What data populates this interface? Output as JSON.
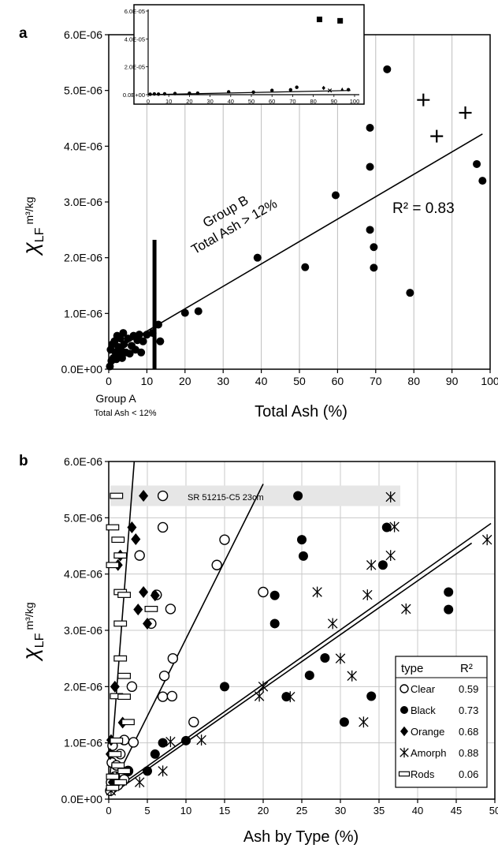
{
  "chart_data": [
    {
      "panel": "a",
      "type": "scatter",
      "panel_label": "a",
      "ylabel_main": "χ",
      "ylabel_sub": "LF",
      "ylabel_unit": "m³/kg",
      "xlabel": "Total Ash (%)",
      "xlim": [
        0,
        100
      ],
      "ylim": [
        0,
        6e-06
      ],
      "x_ticks": [
        "0",
        "10",
        "20",
        "30",
        "40",
        "50",
        "60",
        "70",
        "80",
        "90",
        "100"
      ],
      "y_ticks": [
        "0.0E+00",
        "1.0E-06",
        "2.0E-06",
        "3.0E-06",
        "4.0E-06",
        "5.0E-06",
        "6.0E-06"
      ],
      "grid": "vertical",
      "r2_label": "R² = 0.83",
      "group_b_line1": "Group B",
      "group_b_line2": "Total Ash > 12%",
      "group_a_line1": "Group A",
      "group_a_line2": "Total Ash < 12%",
      "divider_x": 12,
      "divider_top": 2.32e-06,
      "fit": {
        "x0": 0,
        "y0": 2.8e-07,
        "x1": 98,
        "y1": 4.22e-06
      },
      "series": [
        {
          "marker": "circle",
          "points": [
            [
              0.3,
              5e-08
            ],
            [
              0.5,
              3.5e-07
            ],
            [
              0.7,
              1.5e-07
            ],
            [
              1,
              4.5e-07
            ],
            [
              1.2,
              2e-07
            ],
            [
              1.5,
              5e-07
            ],
            [
              1.8,
              3e-07
            ],
            [
              2,
              1.8e-07
            ],
            [
              2.2,
              6e-07
            ],
            [
              2.5,
              4e-07
            ],
            [
              2.8,
              2.5e-07
            ],
            [
              3,
              5.5e-07
            ],
            [
              3.2,
              3.5e-07
            ],
            [
              3.5,
              2e-07
            ],
            [
              3.8,
              6.5e-07
            ],
            [
              4,
              4.5e-07
            ],
            [
              4.5,
              3e-07
            ],
            [
              5,
              5.5e-07
            ],
            [
              5.5,
              2.8e-07
            ],
            [
              6,
              4.2e-07
            ],
            [
              6.5,
              6e-07
            ],
            [
              7,
              3.5e-07
            ],
            [
              7.5,
              5.2e-07
            ],
            [
              8,
              6.2e-07
            ],
            [
              8.5,
              3e-07
            ],
            [
              9,
              5e-07
            ],
            [
              10,
              6.2e-07
            ],
            [
              11.5,
              6.5e-07
            ],
            [
              13,
              8e-07
            ],
            [
              13.5,
              5e-07
            ],
            [
              20,
              1.01e-06
            ],
            [
              23.5,
              1.04e-06
            ],
            [
              39,
              2e-06
            ],
            [
              51.5,
              1.83e-06
            ],
            [
              59.5,
              3.12e-06
            ],
            [
              68.5,
              4.33e-06
            ],
            [
              68.5,
              3.63e-06
            ],
            [
              68.5,
              2.5e-06
            ],
            [
              69.5,
              2.19e-06
            ],
            [
              69.5,
              1.82e-06
            ],
            [
              73,
              5.38e-06
            ],
            [
              79,
              1.37e-06
            ],
            [
              96.5,
              3.68e-06
            ],
            [
              98,
              3.38e-06
            ]
          ]
        },
        {
          "marker": "plus",
          "points": [
            [
              82.5,
              4.83e-06
            ],
            [
              86,
              4.18e-06
            ],
            [
              93.5,
              4.6e-06
            ]
          ]
        }
      ],
      "inset": {
        "type": "scatter",
        "xlim": [
          0,
          100
        ],
        "ylim": [
          0,
          6e-05
        ],
        "x_ticks": [
          "0",
          "10",
          "20",
          "30",
          "40",
          "50",
          "60",
          "70",
          "80",
          "90",
          "100"
        ],
        "y_ticks": [
          "0.0E+00",
          "2.0E-05",
          "4.0E-05",
          "6.0E-05"
        ],
        "fit": {
          "x0": 0,
          "y0": 0,
          "x1": 98,
          "y1": 3e-06
        },
        "series": [
          {
            "marker": "circle",
            "points": [
              [
                1,
                3e-07
              ],
              [
                3,
                5e-07
              ],
              [
                5,
                4e-07
              ],
              [
                8,
                6e-07
              ],
              [
                13,
                8e-07
              ],
              [
                20,
                1e-06
              ],
              [
                24,
                1.1e-06
              ],
              [
                39,
                2e-06
              ],
              [
                51,
                1.8e-06
              ],
              [
                60,
                3.1e-06
              ],
              [
                69,
                3.5e-06
              ],
              [
                72,
                5.3e-06
              ],
              [
                97,
                3.6e-06
              ]
            ]
          },
          {
            "marker": "square",
            "points": [
              [
                83,
                5.4e-05
              ],
              [
                93,
                5.3e-05
              ]
            ]
          },
          {
            "marker": "diamond",
            "points": [
              [
                85,
                4.8e-06
              ]
            ]
          },
          {
            "marker": "triangle",
            "points": [
              [
                94,
                4e-06
              ]
            ]
          },
          {
            "marker": "x",
            "points": [
              [
                88,
                3e-06
              ]
            ]
          }
        ]
      }
    },
    {
      "panel": "b",
      "type": "scatter",
      "panel_label": "b",
      "ylabel_main": "χ",
      "ylabel_sub": "LF",
      "ylabel_unit": "m³/kg",
      "xlabel": "Ash by Type (%)",
      "xlim": [
        0,
        50
      ],
      "ylim": [
        0,
        6e-06
      ],
      "x_ticks": [
        "0",
        "5",
        "10",
        "15",
        "20",
        "25",
        "30",
        "35",
        "40",
        "45",
        "50"
      ],
      "y_ticks": [
        "0.0E+00",
        "1.0E-06",
        "2.0E-06",
        "3.0E-06",
        "4.0E-06",
        "5.0E-06",
        "6.0E-06"
      ],
      "grid": "both",
      "highlight_label": "SR 51215-C5 23cm",
      "highlight_y": 5.39e-06,
      "legend": {
        "header_type": "type",
        "header_r2": "R²",
        "entries": [
          {
            "label": "Clear",
            "r2": "0.59",
            "marker": "open-circle"
          },
          {
            "label": "Black",
            "r2": "0.73",
            "marker": "circle"
          },
          {
            "label": "Orange",
            "r2": "0.68",
            "marker": "diamond"
          },
          {
            "label": "Amorph",
            "r2": "0.88",
            "marker": "asterisk"
          },
          {
            "label": "Rods",
            "r2": "0.06",
            "marker": "rect"
          }
        ]
      },
      "fits": [
        {
          "x0": 0,
          "y0": 1e-07,
          "x1": 3.3,
          "y1": 6e-06
        },
        {
          "x0": 0,
          "y0": 1e-07,
          "x1": 20,
          "y1": 5.6e-06
        },
        {
          "x0": 0,
          "y0": 1e-07,
          "x1": 49.5,
          "y1": 4.9e-06
        },
        {
          "x0": 0.5,
          "y0": 1e-07,
          "x1": 47,
          "y1": 4.55e-06
        }
      ],
      "series": [
        {
          "name": "Clear",
          "marker": "open-circle",
          "points": [
            [
              0.2,
              1.5e-07
            ],
            [
              0.3,
              3e-07
            ],
            [
              0.4,
              6.5e-07
            ],
            [
              0.5,
              9.5e-07
            ],
            [
              0.8,
              4e-07
            ],
            [
              1,
              6e-07
            ],
            [
              1.2,
              2.5e-07
            ],
            [
              1.5,
              8e-07
            ],
            [
              2,
              1.05e-06
            ],
            [
              2,
              3.5e-07
            ],
            [
              2.5,
              5e-07
            ],
            [
              3,
              2e-06
            ],
            [
              3.2,
              1.01e-06
            ],
            [
              4,
              4.33e-06
            ],
            [
              5.5,
              3.12e-06
            ],
            [
              6.2,
              3.63e-06
            ],
            [
              7,
              5.39e-06
            ],
            [
              7,
              4.83e-06
            ],
            [
              7,
              1.82e-06
            ],
            [
              7.2,
              2.19e-06
            ],
            [
              8,
              3.38e-06
            ],
            [
              8.2,
              1.83e-06
            ],
            [
              8.3,
              2.5e-06
            ],
            [
              11,
              1.37e-06
            ],
            [
              14,
              4.16e-06
            ],
            [
              15,
              4.61e-06
            ],
            [
              20,
              3.68e-06
            ]
          ]
        },
        {
          "name": "Black",
          "marker": "circle",
          "points": [
            [
              1,
              3e-07
            ],
            [
              2.5,
              5e-07
            ],
            [
              5,
              5e-07
            ],
            [
              6,
              8e-07
            ],
            [
              7,
              1e-06
            ],
            [
              10,
              1.04e-06
            ],
            [
              15,
              2e-06
            ],
            [
              21.5,
              3.62e-06
            ],
            [
              21.5,
              3.12e-06
            ],
            [
              23,
              1.82e-06
            ],
            [
              24.5,
              5.39e-06
            ],
            [
              25,
              4.61e-06
            ],
            [
              25.2,
              4.32e-06
            ],
            [
              26,
              2.2e-06
            ],
            [
              28,
              2.51e-06
            ],
            [
              30.5,
              1.37e-06
            ],
            [
              34,
              1.83e-06
            ],
            [
              35.5,
              4.16e-06
            ],
            [
              36,
              4.83e-06
            ],
            [
              44,
              3.68e-06
            ],
            [
              44,
              3.37e-06
            ]
          ]
        },
        {
          "name": "Orange",
          "marker": "diamond",
          "points": [
            [
              0.2,
              8e-07
            ],
            [
              0.3,
              1.05e-06
            ],
            [
              0.5,
              3e-07
            ],
            [
              0.8,
              2e-06
            ],
            [
              1.2,
              4.16e-06
            ],
            [
              1.5,
              4.33e-06
            ],
            [
              1.8,
              1.36e-06
            ],
            [
              3,
              4.83e-06
            ],
            [
              3.5,
              4.62e-06
            ],
            [
              3.8,
              3.37e-06
            ],
            [
              4.5,
              3.68e-06
            ],
            [
              4.5,
              5.39e-06
            ],
            [
              5,
              3.12e-06
            ],
            [
              6,
              3.62e-06
            ]
          ]
        },
        {
          "name": "Amorph",
          "marker": "asterisk",
          "points": [
            [
              0.3,
              1.5e-07
            ],
            [
              1,
              4e-07
            ],
            [
              4,
              3e-07
            ],
            [
              7,
              5e-07
            ],
            [
              8,
              1.02e-06
            ],
            [
              12,
              1.05e-06
            ],
            [
              19.5,
              1.83e-06
            ],
            [
              20,
              2e-06
            ],
            [
              23.5,
              1.82e-06
            ],
            [
              27,
              3.68e-06
            ],
            [
              29,
              3.12e-06
            ],
            [
              30,
              2.5e-06
            ],
            [
              31.5,
              2.19e-06
            ],
            [
              33,
              1.37e-06
            ],
            [
              33.5,
              3.63e-06
            ],
            [
              34,
              4.16e-06
            ],
            [
              36.5,
              5.37e-06
            ],
            [
              36.5,
              4.33e-06
            ],
            [
              37,
              4.84e-06
            ],
            [
              38.5,
              3.38e-06
            ],
            [
              49,
              4.61e-06
            ]
          ]
        },
        {
          "name": "Rods",
          "marker": "rect",
          "points": [
            [
              0.5,
              4.83e-06
            ],
            [
              0.5,
              4.16e-06
            ],
            [
              1,
              5.39e-06
            ],
            [
              1.2,
              4.61e-06
            ],
            [
              1.5,
              4.33e-06
            ],
            [
              1.5,
              3.68e-06
            ],
            [
              2,
              3.63e-06
            ],
            [
              1.5,
              3.12e-06
            ],
            [
              1.5,
              2.5e-06
            ],
            [
              2,
              2.19e-06
            ],
            [
              1,
              1.83e-06
            ],
            [
              2,
              1.82e-06
            ],
            [
              2.5,
              1.37e-06
            ],
            [
              5.5,
              3.38e-06
            ],
            [
              1,
              1.04e-06
            ],
            [
              0.8,
              8e-07
            ],
            [
              1.2,
              6e-07
            ],
            [
              0.5,
              4e-07
            ],
            [
              1.5,
              3e-07
            ],
            [
              0.5,
              2e-07
            ],
            [
              2,
              5e-07
            ]
          ]
        }
      ]
    }
  ]
}
